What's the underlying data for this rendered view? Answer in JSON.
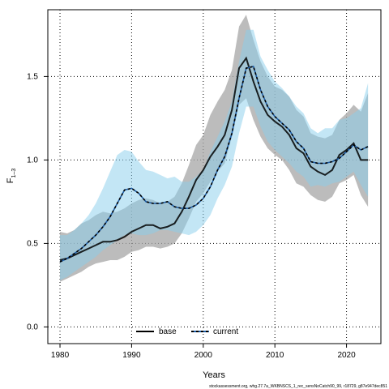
{
  "chart_data": {
    "type": "line",
    "xlabel": "Years",
    "ylabel": "F",
    "ylabel_bar": "‾",
    "ylabel_sub": "1–3",
    "xlim": [
      1978.3,
      2024.8
    ],
    "ylim": [
      -0.1,
      1.9
    ],
    "xticks": [
      1980,
      1990,
      2000,
      2010,
      2020
    ],
    "yticks": [
      0.0,
      0.5,
      1.0,
      1.5
    ],
    "ytick_labels": [
      "0.0",
      "0.5",
      "1.0",
      "1.5"
    ],
    "grid": true,
    "legend_position": "bottom-center",
    "footnote": "stockassessment.org, whg.27.7a_WKBNSCS_1_rec_sensNoCatch90_99, r18729, g87e947dec851",
    "colors": {
      "base_line": "#000000",
      "base_band": "#a6a6a6",
      "current_line": "#000000",
      "current_line_dash": "#1f5fa8",
      "current_band": "#87ceeb"
    },
    "series": [
      {
        "name": "base",
        "style": "solid",
        "x": [
          1980,
          1981,
          1982,
          1983,
          1984,
          1985,
          1986,
          1987,
          1988,
          1989,
          1990,
          1991,
          1992,
          1993,
          1994,
          1995,
          1996,
          1997,
          1998,
          1999,
          2000,
          2001,
          2002,
          2003,
          2004,
          2005,
          2006,
          2007,
          2008,
          2009,
          2010,
          2011,
          2012,
          2013,
          2014,
          2015,
          2016,
          2017,
          2018,
          2019,
          2020,
          2021,
          2022,
          2023
        ],
        "values": [
          0.4,
          0.41,
          0.43,
          0.45,
          0.47,
          0.49,
          0.51,
          0.51,
          0.52,
          0.54,
          0.57,
          0.59,
          0.61,
          0.61,
          0.59,
          0.6,
          0.62,
          0.69,
          0.78,
          0.88,
          0.94,
          1.02,
          1.08,
          1.15,
          1.3,
          1.55,
          1.61,
          1.47,
          1.35,
          1.27,
          1.23,
          1.2,
          1.15,
          1.07,
          1.04,
          0.96,
          0.93,
          0.91,
          0.94,
          1.03,
          1.06,
          1.1,
          1.0,
          1.0
        ],
        "lower": [
          0.27,
          0.29,
          0.31,
          0.33,
          0.36,
          0.38,
          0.39,
          0.4,
          0.4,
          0.42,
          0.45,
          0.46,
          0.48,
          0.48,
          0.47,
          0.48,
          0.5,
          0.56,
          0.65,
          0.75,
          0.8,
          0.87,
          0.93,
          0.98,
          1.14,
          1.33,
          1.37,
          1.24,
          1.14,
          1.07,
          1.03,
          1.0,
          0.94,
          0.86,
          0.84,
          0.79,
          0.76,
          0.75,
          0.78,
          0.86,
          0.88,
          0.91,
          0.79,
          0.72
        ],
        "upper": [
          0.57,
          0.56,
          0.58,
          0.62,
          0.64,
          0.67,
          0.69,
          0.68,
          0.69,
          0.71,
          0.74,
          0.76,
          0.77,
          0.76,
          0.74,
          0.75,
          0.78,
          0.86,
          0.97,
          1.09,
          1.15,
          1.27,
          1.35,
          1.42,
          1.54,
          1.8,
          1.87,
          1.72,
          1.59,
          1.5,
          1.44,
          1.42,
          1.38,
          1.3,
          1.26,
          1.16,
          1.14,
          1.13,
          1.15,
          1.24,
          1.28,
          1.33,
          1.29,
          1.4
        ]
      },
      {
        "name": "current",
        "style": "dashed",
        "x": [
          1980,
          1981,
          1982,
          1983,
          1984,
          1985,
          1986,
          1987,
          1988,
          1989,
          1990,
          1991,
          1992,
          1993,
          1994,
          1995,
          1996,
          1997,
          1998,
          1999,
          2000,
          2001,
          2002,
          2003,
          2004,
          2005,
          2006,
          2007,
          2008,
          2009,
          2010,
          2011,
          2012,
          2013,
          2014,
          2015,
          2016,
          2017,
          2018,
          2019,
          2020,
          2021,
          2022,
          2023
        ],
        "values": [
          0.39,
          0.41,
          0.44,
          0.47,
          0.51,
          0.55,
          0.6,
          0.66,
          0.74,
          0.82,
          0.83,
          0.8,
          0.75,
          0.74,
          0.74,
          0.75,
          0.72,
          0.71,
          0.71,
          0.73,
          0.77,
          0.84,
          0.94,
          1.02,
          1.16,
          1.37,
          1.55,
          1.56,
          1.42,
          1.32,
          1.26,
          1.22,
          1.18,
          1.11,
          1.07,
          0.99,
          0.98,
          0.98,
          0.99,
          1.01,
          1.05,
          1.09,
          1.06,
          1.08
        ],
        "lower": [
          0.28,
          0.3,
          0.33,
          0.36,
          0.39,
          0.42,
          0.46,
          0.49,
          0.52,
          0.55,
          0.56,
          0.55,
          0.55,
          0.56,
          0.58,
          0.58,
          0.57,
          0.56,
          0.55,
          0.57,
          0.61,
          0.67,
          0.77,
          0.85,
          0.96,
          1.16,
          1.32,
          1.32,
          1.2,
          1.11,
          1.06,
          1.02,
          0.98,
          0.93,
          0.9,
          0.84,
          0.85,
          0.84,
          0.86,
          0.87,
          0.9,
          0.93,
          0.85,
          0.78
        ],
        "upper": [
          0.55,
          0.55,
          0.58,
          0.62,
          0.67,
          0.74,
          0.83,
          0.93,
          1.03,
          1.06,
          1.05,
          0.99,
          0.94,
          0.93,
          0.91,
          0.89,
          0.9,
          0.87,
          0.87,
          0.9,
          0.94,
          1.05,
          1.14,
          1.23,
          1.35,
          1.59,
          1.78,
          1.78,
          1.62,
          1.54,
          1.47,
          1.43,
          1.38,
          1.32,
          1.28,
          1.19,
          1.16,
          1.19,
          1.19,
          1.24,
          1.25,
          1.28,
          1.31,
          1.46
        ]
      }
    ]
  }
}
